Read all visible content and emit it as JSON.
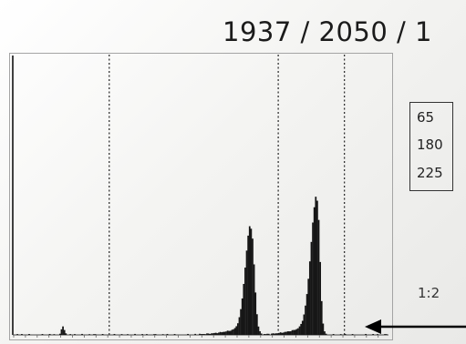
{
  "header": {
    "counter_text": "1937 / 2050 / 1"
  },
  "legend": {
    "values": [
      "65",
      "180",
      "225"
    ]
  },
  "ratio_label": "1:2",
  "colors": {
    "bars": "#161616",
    "frame": "#9a9a9a",
    "markers": "#333333",
    "text": "#1b1b1b"
  },
  "icons": {
    "pointer": "arrow-left-icon"
  },
  "chart_data": {
    "type": "bar",
    "xlim": [
      0,
      255
    ],
    "ylim": [
      0,
      100
    ],
    "grid": false,
    "marker_lines": [
      65,
      180,
      225
    ],
    "peaks": [
      {
        "center": 161,
        "height": 38,
        "width_left": 3.8,
        "width_right": 2.2
      },
      {
        "center": 206,
        "height": 48,
        "width_left": 4.2,
        "width_right": 1.8
      }
    ],
    "baseline_features": [
      {
        "x": 33,
        "height": 2.8
      }
    ]
  }
}
